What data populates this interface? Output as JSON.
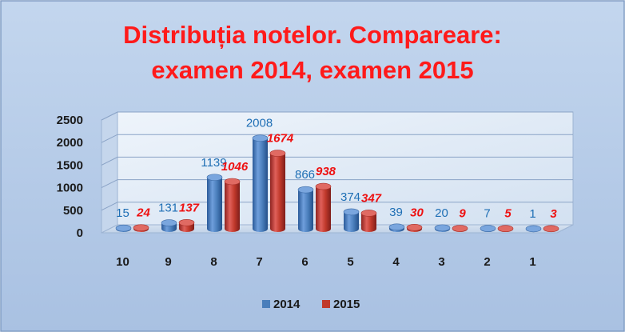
{
  "chart_data": {
    "type": "bar",
    "title": [
      "Distribuția notelor. Compareare:",
      "examen 2014, examen 2015"
    ],
    "categories": [
      "10",
      "9",
      "8",
      "7",
      "6",
      "5",
      "4",
      "3",
      "2",
      "1"
    ],
    "series": [
      {
        "name": "2014",
        "values": [
          15,
          131,
          1139,
          2008,
          866,
          374,
          39,
          20,
          7,
          1
        ],
        "color": "#4a7ebb"
      },
      {
        "name": "2015",
        "values": [
          24,
          137,
          1046,
          1674,
          938,
          347,
          30,
          9,
          5,
          3
        ],
        "color": "#c0392b"
      }
    ],
    "label_colors": {
      "2014": "#1f6fb5",
      "2015": "#ee1111"
    },
    "ylim": [
      0,
      2500
    ],
    "yticks": [
      0,
      500,
      1000,
      1500,
      2000,
      2500
    ],
    "grid": true,
    "legend": "bottom",
    "style": "3d-cylinder",
    "title_color": "#ff1a1a",
    "background": "#b8cde8"
  }
}
